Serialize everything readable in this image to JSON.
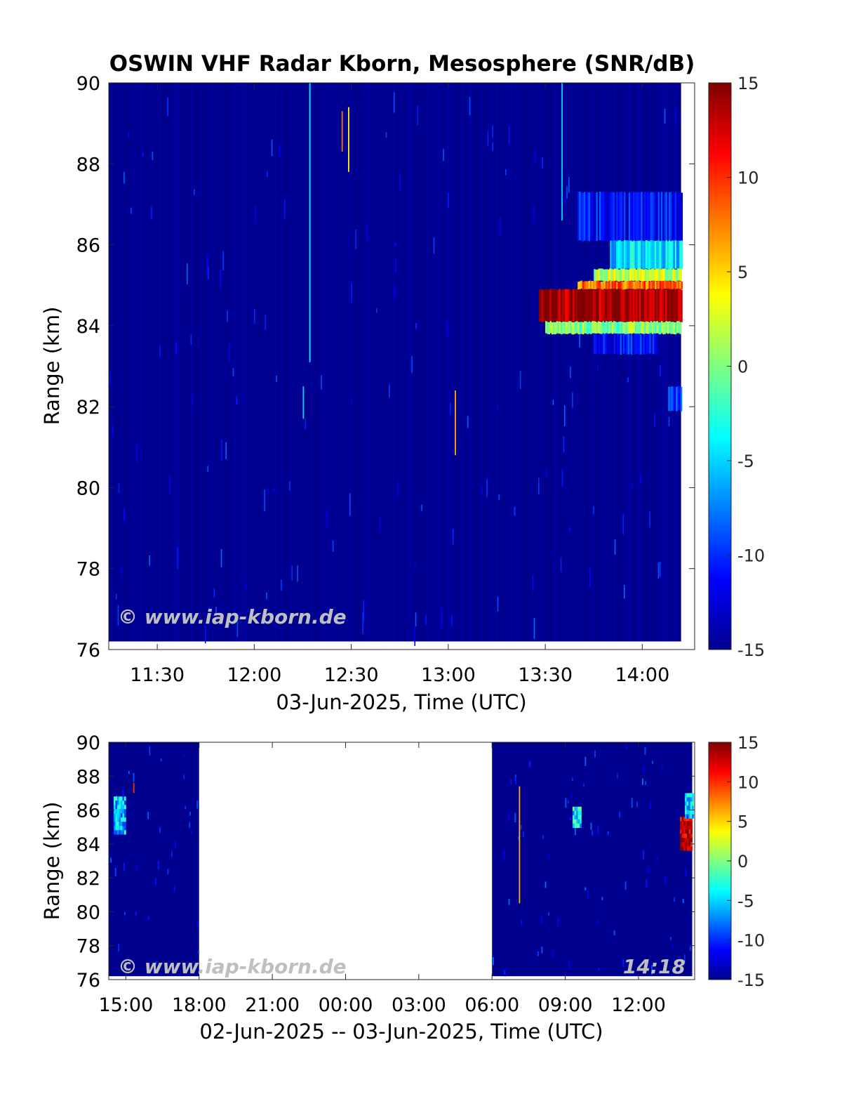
{
  "title": "OSWIN VHF Radar Kborn, Mesosphere (SNR/dB)",
  "watermark": "© www.iap-kborn.de",
  "timestamp": "14:18",
  "colorbar": {
    "ticks": [
      "15",
      "10",
      "5",
      "0",
      "-5",
      "-10",
      "-15"
    ],
    "range": [
      -15,
      15
    ],
    "colors": [
      "#00008f",
      "#0000ff",
      "#0080ff",
      "#00ffff",
      "#80ff80",
      "#ffff00",
      "#ff8000",
      "#ff0000",
      "#800000"
    ]
  },
  "chart_data": [
    {
      "type": "heatmap",
      "panel": "top",
      "title": "OSWIN VHF Radar Kborn, Mesosphere (SNR/dB)",
      "xlabel": "03-Jun-2025, Time (UTC)",
      "ylabel": "Range (km)",
      "xticks": [
        "11:30",
        "12:00",
        "12:30",
        "13:00",
        "13:30",
        "14:00"
      ],
      "xlim_hours": [
        11.25,
        14.27
      ],
      "data_end_hours": 14.2,
      "yticks": [
        "90",
        "88",
        "86",
        "84",
        "82",
        "80",
        "78",
        "76"
      ],
      "ylim": [
        76,
        90
      ],
      "background_snr_db": -15,
      "layers": [
        {
          "range_km": [
            86.1,
            87.3
          ],
          "time": [
            "13:40",
            "14:18"
          ],
          "snr_db": -11
        },
        {
          "range_km": [
            85.4,
            86.1
          ],
          "time": [
            "13:50",
            "14:18"
          ],
          "snr_db": -5
        },
        {
          "range_km": [
            85.1,
            85.4
          ],
          "time": [
            "13:45",
            "14:18"
          ],
          "snr_db": 2
        },
        {
          "range_km": [
            84.9,
            85.1
          ],
          "time": [
            "13:40",
            "14:18"
          ],
          "snr_db": 8
        },
        {
          "range_km": [
            84.1,
            84.9
          ],
          "time": [
            "13:28",
            "14:18"
          ],
          "snr_db": 14
        },
        {
          "range_km": [
            83.8,
            84.1
          ],
          "time": [
            "13:30",
            "14:18"
          ],
          "snr_db": 0
        },
        {
          "range_km": [
            83.3,
            83.8
          ],
          "time": [
            "13:45",
            "14:05"
          ],
          "snr_db": -11
        },
        {
          "range_km": [
            81.9,
            82.5
          ],
          "time": [
            "14:08",
            "14:18"
          ],
          "snr_db": -10
        }
      ],
      "spikes": [
        {
          "time": "12:17",
          "range_km": [
            83.1,
            90
          ],
          "snr_db": -4
        },
        {
          "time": "12:27",
          "range_km": [
            88.3,
            89.3
          ],
          "snr_db": 8
        },
        {
          "time": "12:29",
          "range_km": [
            87.8,
            89.4
          ],
          "snr_db": 4
        },
        {
          "time": "13:02",
          "range_km": [
            80.8,
            82.4
          ],
          "snr_db": 6
        },
        {
          "time": "12:15",
          "range_km": [
            81.7,
            82.5
          ],
          "snr_db": -5
        },
        {
          "time": "13:35",
          "range_km": [
            86.6,
            90
          ],
          "snr_db": -5
        }
      ]
    },
    {
      "type": "heatmap",
      "panel": "bottom",
      "xlabel": "02-Jun-2025 -- 03-Jun-2025, Time (UTC)",
      "ylabel": "Range (km)",
      "xticks": [
        "15:00",
        "18:00",
        "21:00",
        "00:00",
        "03:00",
        "06:00",
        "09:00",
        "12:00"
      ],
      "xlim_hours": [
        14.3,
        38.3
      ],
      "yticks": [
        "90",
        "88",
        "86",
        "84",
        "82",
        "80",
        "78",
        "76"
      ],
      "ylim": [
        76,
        90
      ],
      "data_segments_hours": [
        [
          14.3,
          18.0
        ],
        [
          30.0,
          38.2
        ]
      ],
      "background_snr_db": -15,
      "layers": [
        {
          "time_hours": [
            14.5,
            15.0
          ],
          "range_km": [
            84.8,
            86.8
          ],
          "snr_db": -6
        },
        {
          "time_hours": [
            33.3,
            33.6
          ],
          "range_km": [
            85.0,
            86.2
          ],
          "snr_db": -4
        },
        {
          "time_hours": [
            37.7,
            38.2
          ],
          "range_km": [
            83.8,
            85.6
          ],
          "snr_db": 13
        },
        {
          "time_hours": [
            37.9,
            38.2
          ],
          "range_km": [
            85.6,
            87.0
          ],
          "snr_db": -6
        }
      ],
      "spikes": [
        {
          "time_hours": 31.1,
          "range_km": [
            80.5,
            87.4
          ],
          "snr_db": 6
        },
        {
          "time_hours": 15.3,
          "range_km": [
            87.0,
            87.6
          ],
          "snr_db": 10
        }
      ]
    }
  ]
}
